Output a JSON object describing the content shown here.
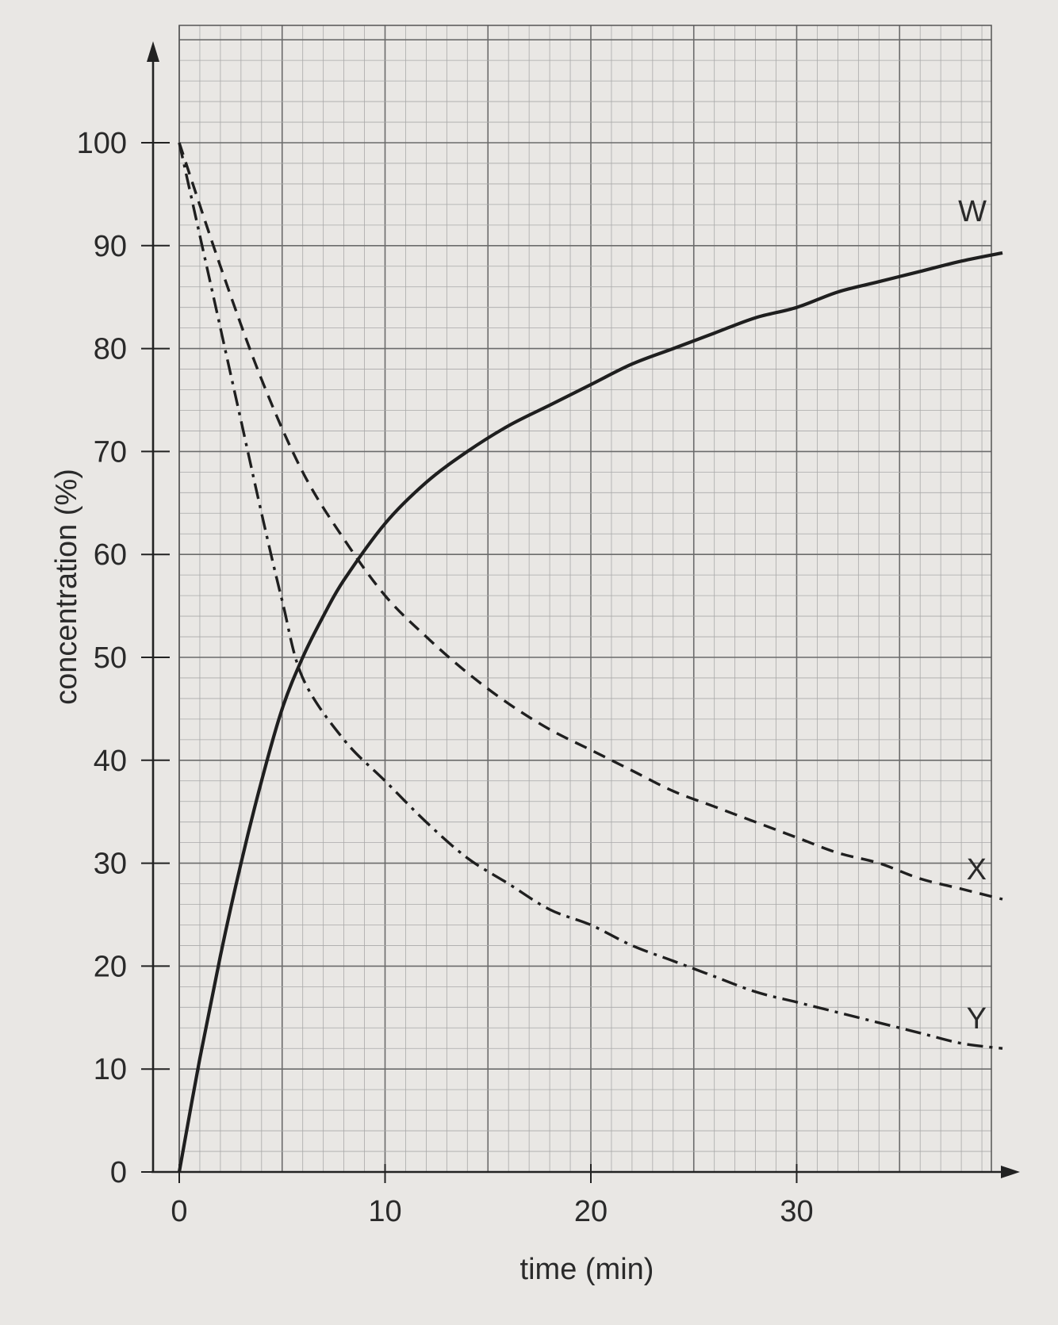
{
  "chart_data": {
    "type": "line",
    "title": "",
    "xlabel": "time (min)",
    "ylabel": "concentration (%)",
    "xlim": [
      0,
      40
    ],
    "ylim": [
      0,
      110
    ],
    "x_ticks": [
      0,
      10,
      20,
      30
    ],
    "x_tick_labels": [
      "0",
      "10",
      "20",
      "30"
    ],
    "y_ticks": [
      0,
      10,
      20,
      30,
      40,
      50,
      60,
      70,
      80,
      90,
      100
    ],
    "y_tick_labels": [
      "0",
      "10",
      "20",
      "30",
      "40",
      "50",
      "60",
      "70",
      "80",
      "90",
      "100"
    ],
    "grid": true,
    "series": [
      {
        "name": "W",
        "style": "solid",
        "x": [
          0,
          1,
          2,
          3,
          4,
          5,
          6,
          7,
          8,
          10,
          12,
          14,
          16,
          18,
          20,
          22,
          24,
          26,
          28,
          30,
          32,
          34,
          36,
          38,
          40
        ],
        "y": [
          0,
          11,
          21,
          30,
          38,
          45,
          50,
          54,
          57.5,
          63,
          67,
          70,
          72.5,
          74.5,
          76.5,
          78.5,
          80,
          81.5,
          83,
          84,
          85.5,
          86.5,
          87.5,
          88.5,
          89.3
        ]
      },
      {
        "name": "X",
        "style": "dashed",
        "x": [
          0,
          2,
          4,
          6,
          8,
          10,
          12,
          14,
          16,
          18,
          20,
          22,
          24,
          26,
          28,
          30,
          32,
          34,
          36,
          38,
          40
        ],
        "y": [
          100,
          88,
          77,
          68,
          61.5,
          56,
          52,
          48.5,
          45.5,
          43,
          41,
          39,
          37,
          35.5,
          34,
          32.5,
          31,
          30,
          28.5,
          27.5,
          26.5
        ]
      },
      {
        "name": "Y",
        "style": "dash-dot",
        "x": [
          0,
          1,
          2,
          3,
          4,
          5,
          6,
          8,
          10,
          12,
          14,
          16,
          18,
          20,
          22,
          24,
          26,
          28,
          30,
          32,
          34,
          36,
          38,
          40
        ],
        "y": [
          100,
          91,
          82,
          73,
          64,
          55.5,
          48,
          42,
          38,
          34,
          30.5,
          28,
          25.5,
          24,
          22,
          20.5,
          19,
          17.5,
          16.5,
          15.5,
          14.5,
          13.5,
          12.5,
          12
        ]
      }
    ]
  }
}
